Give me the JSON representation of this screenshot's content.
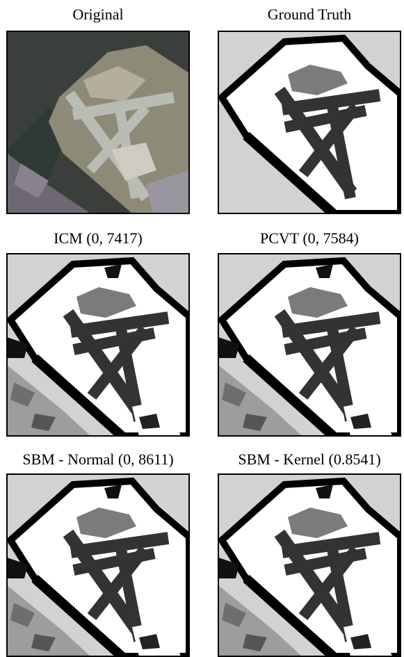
{
  "figure": {
    "panels": [
      {
        "caption": "Original"
      },
      {
        "caption": "Ground Truth"
      },
      {
        "caption": "ICM (0, 7417)"
      },
      {
        "caption": "PCVT (0, 7584)"
      },
      {
        "caption": "SBM - Normal (0, 8611)"
      },
      {
        "caption": "SBM - Kernel (0.8541)"
      }
    ]
  }
}
